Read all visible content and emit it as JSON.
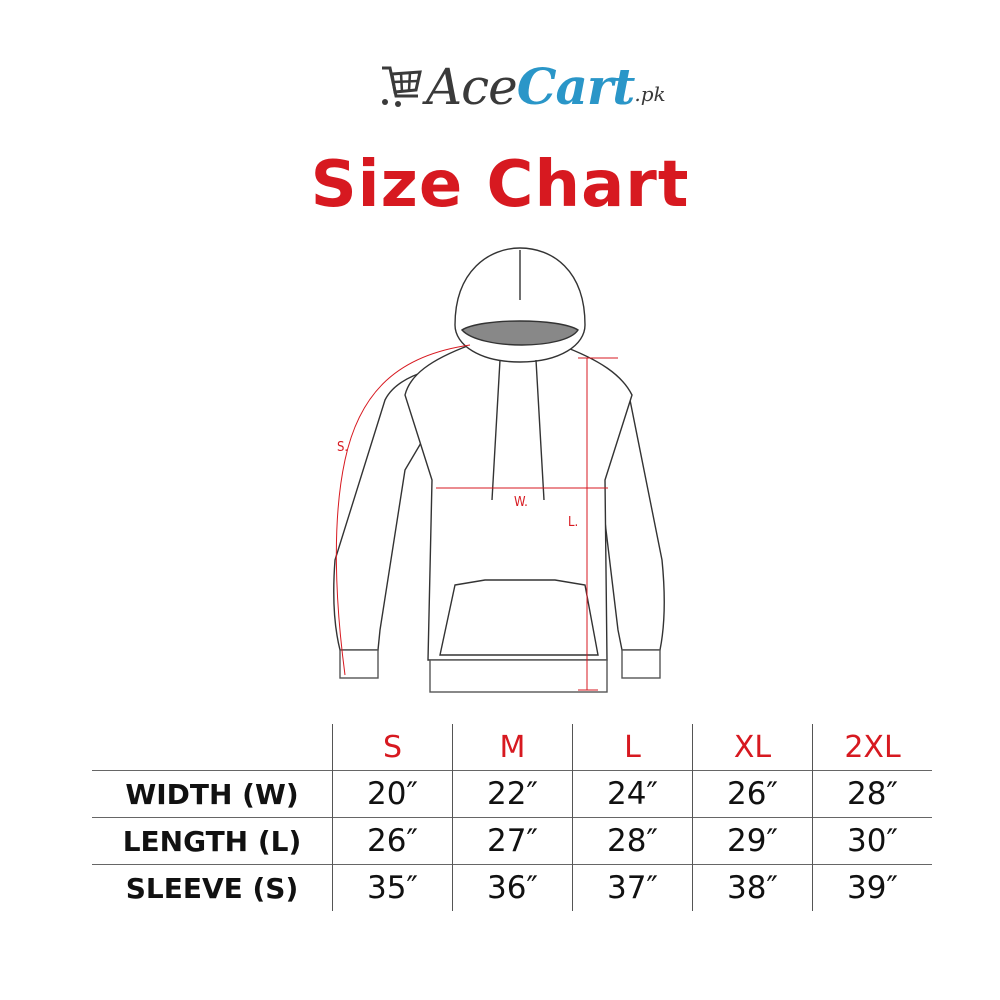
{
  "brand": {
    "name_part1": "Ace",
    "name_part2": "Cart",
    "suffix": ".pk",
    "colors": {
      "dark": "#3a3a3a",
      "blue": "#2a96c8"
    },
    "icon": "shopping-cart-icon"
  },
  "title": "Size Chart",
  "accent_color": "#d71920",
  "diagram": {
    "labels": {
      "sleeve": "S.",
      "width": "W.",
      "length": "L."
    }
  },
  "table": {
    "sizes": [
      "S",
      "M",
      "L",
      "XL",
      "2XL"
    ],
    "rows": [
      {
        "label": "WIDTH (W)",
        "values": [
          "20″",
          "22″",
          "24″",
          "26″",
          "28″"
        ]
      },
      {
        "label": "LENGTH (L)",
        "values": [
          "26″",
          "27″",
          "28″",
          "29″",
          "30″"
        ]
      },
      {
        "label": "SLEEVE (S)",
        "values": [
          "35″",
          "36″",
          "37″",
          "38″",
          "39″"
        ]
      }
    ]
  }
}
